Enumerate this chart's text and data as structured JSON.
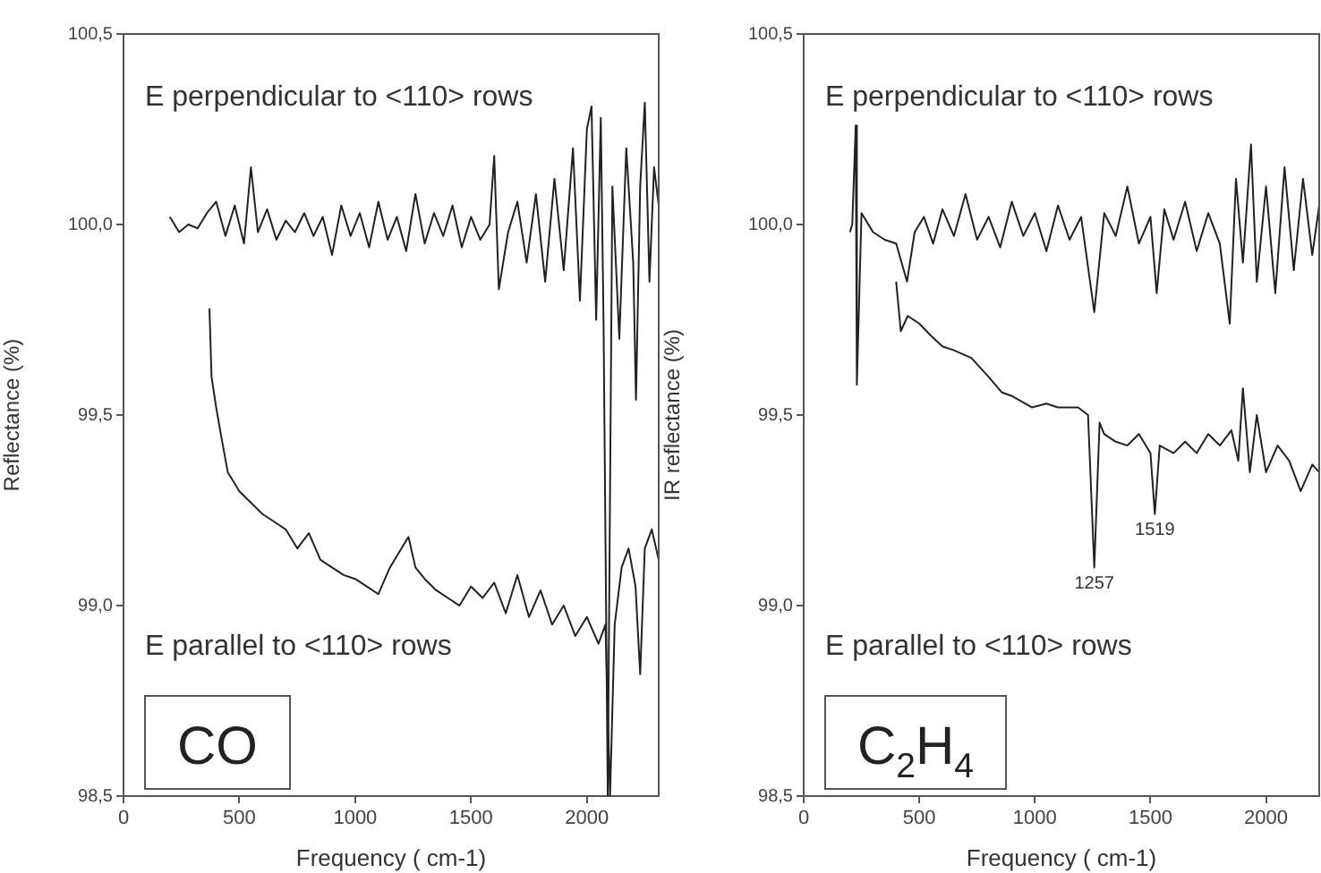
{
  "chart_data": [
    {
      "type": "line",
      "title": "CO",
      "xlabel": "Frequency ( cm-1)",
      "ylabel": "Reflectance (%)",
      "xlim": [
        0,
        2310
      ],
      "ylim": [
        98.5,
        100.5
      ],
      "xticks": [
        0,
        500,
        1000,
        1500,
        2000
      ],
      "yticks": [
        {
          "value": 98.5,
          "label": "98,5"
        },
        {
          "value": 99,
          "label": "99,0"
        },
        {
          "value": 99.5,
          "label": "99,5"
        },
        {
          "value": 100,
          "label": "100,0"
        },
        {
          "value": 100.5,
          "label": "100,5"
        }
      ],
      "series": [
        {
          "name": "E perpendicular to <110> rows",
          "color": "#222222",
          "x": [
            200,
            240,
            280,
            320,
            360,
            400,
            440,
            480,
            520,
            550,
            580,
            620,
            660,
            700,
            740,
            780,
            820,
            860,
            900,
            940,
            980,
            1020,
            1060,
            1100,
            1140,
            1180,
            1220,
            1260,
            1300,
            1340,
            1380,
            1420,
            1460,
            1500,
            1540,
            1580,
            1600,
            1620,
            1660,
            1700,
            1740,
            1780,
            1820,
            1860,
            1900,
            1940,
            1970,
            2000,
            2020,
            2040,
            2060,
            2072,
            2090,
            2110,
            2140,
            2170,
            2200,
            2212,
            2230,
            2250,
            2270,
            2290,
            2310
          ],
          "values": [
            100.02,
            99.98,
            100.0,
            99.99,
            100.03,
            100.06,
            99.97,
            100.05,
            99.95,
            100.15,
            99.98,
            100.04,
            99.96,
            100.01,
            99.98,
            100.03,
            99.97,
            100.02,
            99.92,
            100.05,
            99.97,
            100.03,
            99.94,
            100.06,
            99.96,
            100.02,
            99.93,
            100.08,
            99.95,
            100.03,
            99.97,
            100.05,
            99.94,
            100.02,
            99.96,
            100.0,
            100.18,
            99.83,
            99.98,
            100.06,
            99.9,
            100.08,
            99.85,
            100.12,
            99.88,
            100.2,
            99.8,
            100.25,
            100.31,
            99.75,
            100.28,
            99.74,
            98.5,
            100.1,
            99.7,
            100.2,
            99.9,
            99.54,
            100.1,
            100.32,
            99.85,
            100.15,
            100.05
          ]
        },
        {
          "name": "E parallel to <110> rows",
          "color": "#222222",
          "x": [
            371,
            380,
            400,
            420,
            450,
            500,
            550,
            600,
            650,
            700,
            750,
            800,
            850,
            900,
            950,
            1000,
            1050,
            1100,
            1150,
            1200,
            1230,
            1260,
            1300,
            1350,
            1400,
            1450,
            1500,
            1550,
            1600,
            1650,
            1700,
            1750,
            1800,
            1850,
            1900,
            1950,
            2000,
            2050,
            2080,
            2100,
            2120,
            2150,
            2180,
            2210,
            2230,
            2250,
            2280,
            2310
          ],
          "values": [
            99.78,
            99.6,
            99.52,
            99.45,
            99.35,
            99.3,
            99.27,
            99.24,
            99.22,
            99.2,
            99.15,
            99.19,
            99.12,
            99.1,
            99.08,
            99.07,
            99.05,
            99.03,
            99.1,
            99.15,
            99.18,
            99.1,
            99.07,
            99.04,
            99.02,
            99.0,
            99.05,
            99.02,
            99.06,
            98.98,
            99.08,
            98.97,
            99.04,
            98.95,
            99.0,
            98.92,
            98.97,
            98.9,
            98.95,
            98.5,
            98.95,
            99.1,
            99.15,
            99.05,
            98.82,
            99.15,
            99.2,
            99.12
          ]
        }
      ]
    },
    {
      "type": "line",
      "title": "C$_{2}$H$_{4}$",
      "xlabel": "Frequency ( cm-1)",
      "ylabel": "IR reflectance (%)",
      "xlim": [
        0,
        2230
      ],
      "ylim": [
        98.5,
        100.5
      ],
      "xticks": [
        0,
        500,
        1000,
        1500,
        2000
      ],
      "yticks": [
        {
          "value": 98.5,
          "label": "98,5"
        },
        {
          "value": 99,
          "label": "99,0"
        },
        {
          "value": 99.5,
          "label": "99,5"
        },
        {
          "value": 100,
          "label": "100,0"
        },
        {
          "value": 100.5,
          "label": "100,5"
        }
      ],
      "annotations": [
        {
          "text": "1257",
          "x": 1257,
          "y": 99.1
        },
        {
          "text": "1519",
          "x": 1519,
          "y": 99.24
        }
      ],
      "series": [
        {
          "name": "E perpendicular to <110> rows",
          "color": "#222222",
          "x": [
            200,
            210,
            225,
            230,
            250,
            300,
            350,
            400,
            447,
            480,
            520,
            560,
            600,
            650,
            700,
            750,
            800,
            850,
            900,
            950,
            1000,
            1050,
            1100,
            1150,
            1200,
            1257,
            1300,
            1350,
            1400,
            1450,
            1500,
            1527,
            1560,
            1600,
            1650,
            1700,
            1750,
            1800,
            1843,
            1870,
            1900,
            1935,
            1960,
            2000,
            2040,
            2080,
            2120,
            2160,
            2200,
            2230
          ],
          "values": [
            99.98,
            100.0,
            100.26,
            99.58,
            100.03,
            99.98,
            99.96,
            99.95,
            99.85,
            99.98,
            100.02,
            99.95,
            100.04,
            99.97,
            100.08,
            99.96,
            100.02,
            99.94,
            100.06,
            99.97,
            100.03,
            99.93,
            100.05,
            99.96,
            100.02,
            99.77,
            100.03,
            99.97,
            100.1,
            99.95,
            100.02,
            99.82,
            100.04,
            99.96,
            100.06,
            99.93,
            100.03,
            99.95,
            99.74,
            100.12,
            99.9,
            100.21,
            99.85,
            100.1,
            99.82,
            100.15,
            99.88,
            100.12,
            99.92,
            100.05
          ]
        },
        {
          "name": "E parallel to <110> rows",
          "color": "#222222",
          "x": [
            400,
            420,
            450,
            500,
            547,
            600,
            650,
            725,
            800,
            856,
            900,
            987,
            1050,
            1100,
            1187,
            1230,
            1257,
            1280,
            1300,
            1350,
            1400,
            1450,
            1500,
            1519,
            1540,
            1600,
            1650,
            1700,
            1750,
            1800,
            1850,
            1880,
            1900,
            1930,
            1960,
            2000,
            2050,
            2100,
            2150,
            2200,
            2230
          ],
          "values": [
            99.85,
            99.72,
            99.76,
            99.74,
            99.71,
            99.68,
            99.67,
            99.65,
            99.6,
            99.56,
            99.55,
            99.52,
            99.53,
            99.52,
            99.52,
            99.5,
            99.1,
            99.48,
            99.45,
            99.43,
            99.42,
            99.45,
            99.4,
            99.24,
            99.42,
            99.4,
            99.43,
            99.4,
            99.45,
            99.42,
            99.46,
            99.38,
            99.57,
            99.35,
            99.5,
            99.35,
            99.42,
            99.38,
            99.3,
            99.37,
            99.35
          ]
        }
      ]
    }
  ]
}
